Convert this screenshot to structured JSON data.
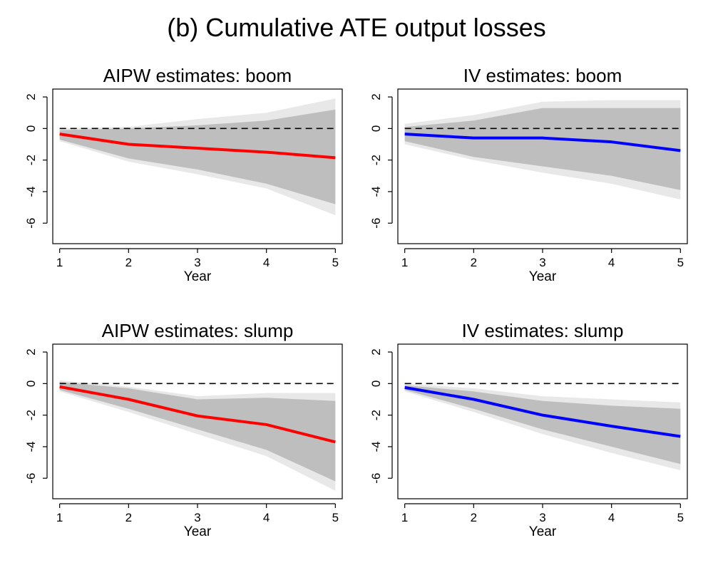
{
  "title": "(b) Cumulative ATE output losses",
  "colors": {
    "red_line": "#ff0000",
    "blue_line": "#0000ff",
    "band_outer": "#e8e8e8",
    "band_inner": "#bebebe",
    "zero_line": "#000000"
  },
  "chart_data": [
    {
      "type": "line",
      "title": "AIPW estimates: boom",
      "xlabel": "Year",
      "ylabel": "",
      "x": [
        1,
        2,
        3,
        4,
        5
      ],
      "xticks": [
        "1",
        "2",
        "3",
        "4",
        "5"
      ],
      "yticks": [
        "2",
        "0",
        "-2",
        "-4",
        "-6"
      ],
      "ylim": [
        -7.3,
        2.5
      ],
      "xlim": [
        0.9,
        5.1
      ],
      "grid": false,
      "reference_line": 0,
      "series": [
        {
          "color": "red",
          "values": [
            -0.35,
            -1.0,
            -1.25,
            -1.5,
            -1.85
          ]
        }
      ],
      "bands": {
        "outer_lower": [
          -0.8,
          -2.1,
          -2.9,
          -3.8,
          -5.5
        ],
        "outer_upper": [
          0.0,
          0.1,
          0.6,
          1.0,
          1.9
        ],
        "inner_lower": [
          -0.7,
          -1.9,
          -2.6,
          -3.5,
          -4.8
        ],
        "inner_upper": [
          -0.1,
          0.0,
          0.2,
          0.5,
          1.2
        ]
      }
    },
    {
      "type": "line",
      "title": "IV estimates: boom",
      "xlabel": "Year",
      "ylabel": "",
      "x": [
        1,
        2,
        3,
        4,
        5
      ],
      "xticks": [
        "1",
        "2",
        "3",
        "4",
        "5"
      ],
      "yticks": [
        "2",
        "0",
        "-2",
        "-4",
        "-6"
      ],
      "ylim": [
        -7.3,
        2.5
      ],
      "xlim": [
        0.9,
        5.1
      ],
      "grid": false,
      "reference_line": 0,
      "series": [
        {
          "color": "blue",
          "values": [
            -0.35,
            -0.6,
            -0.6,
            -0.85,
            -1.4
          ]
        }
      ],
      "bands": {
        "outer_lower": [
          -1.0,
          -2.0,
          -2.8,
          -3.5,
          -4.5
        ],
        "outer_upper": [
          0.3,
          0.85,
          1.7,
          1.8,
          1.8
        ],
        "inner_lower": [
          -0.8,
          -1.8,
          -2.4,
          -3.0,
          -3.9
        ],
        "inner_upper": [
          0.1,
          0.5,
          1.3,
          1.3,
          1.3
        ]
      }
    },
    {
      "type": "line",
      "title": "AIPW estimates: slump",
      "xlabel": "Year",
      "ylabel": "",
      "x": [
        1,
        2,
        3,
        4,
        5
      ],
      "xticks": [
        "1",
        "2",
        "3",
        "4",
        "5"
      ],
      "yticks": [
        "2",
        "0",
        "-2",
        "-4",
        "-6"
      ],
      "ylim": [
        -7.3,
        2.5
      ],
      "xlim": [
        0.9,
        5.1
      ],
      "grid": false,
      "reference_line": 0,
      "series": [
        {
          "color": "red",
          "values": [
            -0.2,
            -1.0,
            -2.05,
            -2.6,
            -3.7
          ]
        }
      ],
      "bands": {
        "outer_lower": [
          -0.5,
          -1.8,
          -3.2,
          -4.6,
          -6.8
        ],
        "outer_upper": [
          0.2,
          -0.2,
          -0.8,
          -0.6,
          -0.6
        ],
        "inner_lower": [
          -0.4,
          -1.6,
          -2.9,
          -4.2,
          -6.2
        ],
        "inner_upper": [
          0.1,
          -0.3,
          -1.0,
          -0.9,
          -1.1
        ]
      }
    },
    {
      "type": "line",
      "title": "IV estimates: slump",
      "xlabel": "Year",
      "ylabel": "",
      "x": [
        1,
        2,
        3,
        4,
        5
      ],
      "xticks": [
        "1",
        "2",
        "3",
        "4",
        "5"
      ],
      "yticks": [
        "2",
        "0",
        "-2",
        "-4",
        "-6"
      ],
      "ylim": [
        -7.3,
        2.5
      ],
      "xlim": [
        0.9,
        5.1
      ],
      "grid": false,
      "reference_line": 0,
      "series": [
        {
          "color": "blue",
          "values": [
            -0.25,
            -1.0,
            -2.0,
            -2.7,
            -3.35
          ]
        }
      ],
      "bands": {
        "outer_lower": [
          -0.5,
          -1.8,
          -3.2,
          -4.4,
          -5.5
        ],
        "outer_upper": [
          0.0,
          -0.3,
          -0.8,
          -1.0,
          -1.2
        ],
        "inner_lower": [
          -0.4,
          -1.6,
          -2.9,
          -4.0,
          -5.1
        ],
        "inner_upper": [
          -0.1,
          -0.5,
          -1.1,
          -1.4,
          -1.6
        ]
      }
    }
  ]
}
